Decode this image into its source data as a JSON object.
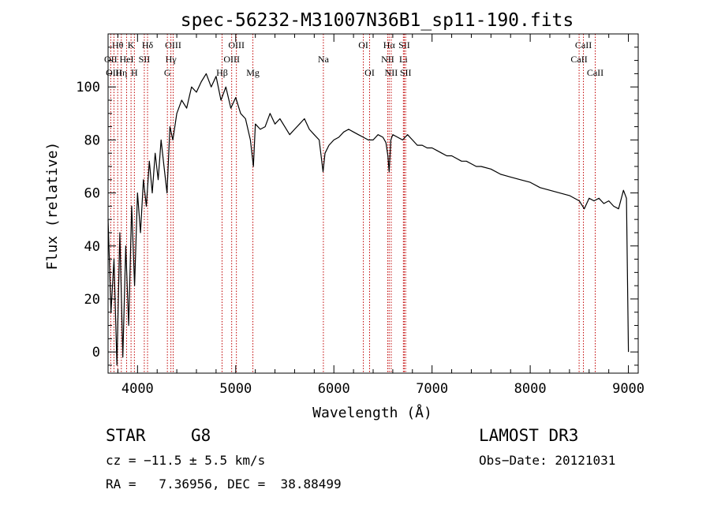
{
  "chart_data": {
    "type": "line",
    "title": "spec-56232-M31007N36B1_sp11-190.fits",
    "xlabel": "Wavelength (Å)",
    "ylabel": "Flux (relative)",
    "xlim": [
      3700,
      9100
    ],
    "ylim": [
      -8,
      120
    ],
    "x_ticks": [
      4000,
      5000,
      6000,
      7000,
      8000,
      9000
    ],
    "y_ticks": [
      0,
      20,
      40,
      60,
      80,
      100
    ],
    "grid": false,
    "line_color": "#000000",
    "marker_color": "#c00000",
    "series": [
      {
        "name": "flux",
        "x": [
          3700,
          3730,
          3760,
          3790,
          3820,
          3850,
          3880,
          3910,
          3940,
          3970,
          4000,
          4030,
          4060,
          4090,
          4120,
          4150,
          4180,
          4210,
          4240,
          4270,
          4300,
          4330,
          4360,
          4400,
          4450,
          4500,
          4550,
          4600,
          4650,
          4700,
          4750,
          4800,
          4850,
          4900,
          4950,
          5000,
          5050,
          5100,
          5150,
          5180,
          5200,
          5250,
          5300,
          5350,
          5400,
          5450,
          5500,
          5550,
          5600,
          5650,
          5700,
          5750,
          5800,
          5850,
          5890,
          5910,
          5950,
          6000,
          6050,
          6100,
          6150,
          6200,
          6250,
          6300,
          6350,
          6400,
          6450,
          6500,
          6530,
          6550,
          6563,
          6580,
          6600,
          6650,
          6700,
          6750,
          6800,
          6850,
          6900,
          6950,
          7000,
          7050,
          7100,
          7150,
          7200,
          7250,
          7300,
          7350,
          7400,
          7450,
          7500,
          7600,
          7700,
          7800,
          7900,
          8000,
          8100,
          8200,
          8300,
          8400,
          8500,
          8550,
          8600,
          8650,
          8700,
          8750,
          8800,
          8850,
          8900,
          8950,
          8980,
          9000
        ],
        "y": [
          50,
          15,
          35,
          -5,
          45,
          -2,
          40,
          10,
          55,
          25,
          60,
          45,
          65,
          55,
          72,
          60,
          75,
          65,
          80,
          70,
          60,
          85,
          80,
          90,
          95,
          92,
          100,
          98,
          102,
          105,
          100,
          104,
          95,
          100,
          92,
          96,
          90,
          88,
          80,
          70,
          86,
          84,
          85,
          90,
          86,
          88,
          85,
          82,
          84,
          86,
          88,
          84,
          82,
          80,
          68,
          75,
          78,
          80,
          81,
          83,
          84,
          83,
          82,
          81,
          80,
          80,
          82,
          81,
          79,
          74,
          68,
          80,
          82,
          81,
          80,
          82,
          80,
          78,
          78,
          77,
          77,
          76,
          75,
          74,
          74,
          73,
          72,
          72,
          71,
          70,
          70,
          69,
          67,
          66,
          65,
          64,
          62,
          61,
          60,
          59,
          57,
          54,
          58,
          57,
          58,
          56,
          57,
          55,
          54,
          61,
          58,
          0
        ]
      }
    ],
    "line_markers": [
      {
        "name": "Hθ",
        "x": 3798,
        "row": 1
      },
      {
        "name": "OII",
        "x": 3727,
        "row": 2
      },
      {
        "name": "OIII",
        "x": 3760,
        "row": 3
      },
      {
        "name": "Hη",
        "x": 3835,
        "row": 3
      },
      {
        "name": "K",
        "x": 3934,
        "row": 1
      },
      {
        "name": "HeI",
        "x": 3889,
        "row": 2
      },
      {
        "name": "H",
        "x": 3968,
        "row": 3
      },
      {
        "name": "SII",
        "x": 4069,
        "row": 2
      },
      {
        "name": "Hδ",
        "x": 4102,
        "row": 1
      },
      {
        "name": "OIII",
        "x": 4363,
        "row": 1
      },
      {
        "name": "Hγ",
        "x": 4340,
        "row": 2
      },
      {
        "name": "G",
        "x": 4304,
        "row": 3
      },
      {
        "name": "OIII",
        "x": 5007,
        "row": 1
      },
      {
        "name": "OIII",
        "x": 4959,
        "row": 2
      },
      {
        "name": "Hβ",
        "x": 4861,
        "row": 3
      },
      {
        "name": "Mg",
        "x": 5175,
        "row": 3
      },
      {
        "name": "Na",
        "x": 5893,
        "row": 2
      },
      {
        "name": "OI",
        "x": 6300,
        "row": 1
      },
      {
        "name": "OI",
        "x": 6364,
        "row": 3
      },
      {
        "name": "Hα",
        "x": 6563,
        "row": 1
      },
      {
        "name": "NII",
        "x": 6548,
        "row": 2
      },
      {
        "name": "NII",
        "x": 6584,
        "row": 3
      },
      {
        "name": "SII",
        "x": 6717,
        "row": 1
      },
      {
        "name": "Li",
        "x": 6708,
        "row": 2
      },
      {
        "name": "SII",
        "x": 6731,
        "row": 3
      },
      {
        "name": "CaII",
        "x": 8542,
        "row": 1
      },
      {
        "name": "CaII",
        "x": 8498,
        "row": 2
      },
      {
        "name": "CaII",
        "x": 8662,
        "row": 3
      }
    ]
  },
  "info": {
    "object_class": "STAR",
    "subclass": "G8",
    "cz_text": "cz = −11.5 ± 5.5 km/s",
    "coords_text": "RA =   7.36956, DEC =  38.88499",
    "survey": "LAMOST DR3",
    "obs_date_text": "Obs−Date: 20121031"
  }
}
